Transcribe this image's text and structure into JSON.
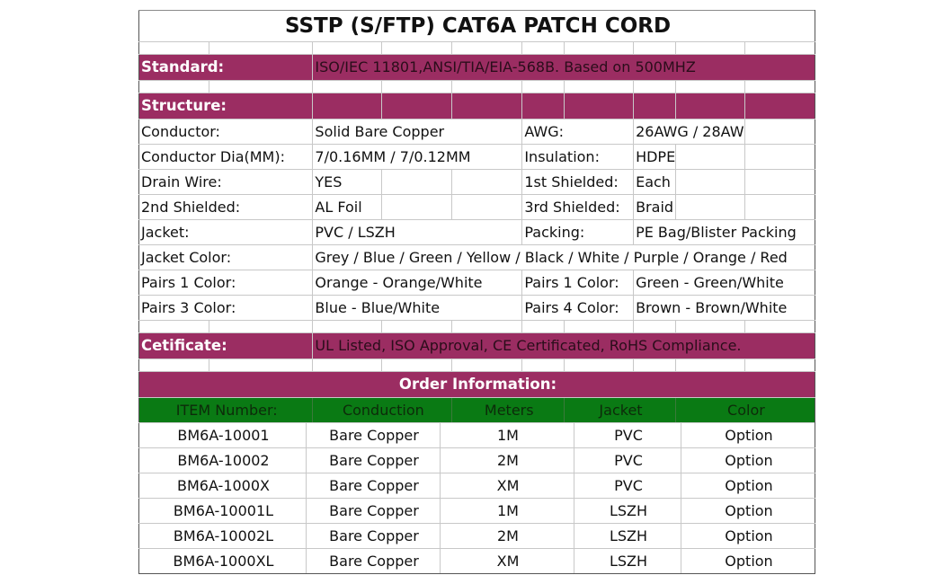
{
  "title": "SSTP (S/FTP) CAT6A PATCH CORD",
  "standard": {
    "label": "Standard:",
    "value": "ISO/IEC 11801,ANSI/TIA/EIA-568B. Based on 500MHZ"
  },
  "structure": {
    "label": "Structure:",
    "rows": [
      {
        "label": "Conductor:",
        "value": "Solid Bare Copper",
        "label2": "AWG:",
        "value2": "26AWG / 28AWG"
      },
      {
        "label": "Conductor Dia(MM):",
        "value": "7/0.16MM / 7/0.12MM",
        "label2": "Insulation:",
        "value2": "HDPE"
      },
      {
        "label": "Drain Wire:",
        "value": "YES",
        "label2": "1st Shielded:",
        "value2": "Each Pair"
      },
      {
        "label": "2nd Shielded:",
        "value": "AL Foil",
        "label2": "3rd Shielded:",
        "value2": "Braid"
      },
      {
        "label": "Jacket:",
        "value": "PVC / LSZH",
        "label2": "Packing:",
        "value2": "PE Bag/Blister Packing"
      }
    ],
    "jacket_color": {
      "label": "Jacket Color:",
      "value": "Grey / Blue / Green / Yellow / Black / White / Purple / Orange / Red"
    },
    "pairs_rows": [
      {
        "label": "Pairs 1 Color:",
        "value": "Orange - Orange/White",
        "label2": "Pairs 1 Color:",
        "value2": "Green - Green/White"
      },
      {
        "label": "Pairs 3 Color:",
        "value": "Blue - Blue/White",
        "label2": "Pairs 4 Color:",
        "value2": "Brown - Brown/White"
      }
    ]
  },
  "certificate": {
    "label": "Cetificate:",
    "value": "UL Listed, ISO Approval, CE Certificated, RoHS Compliance."
  },
  "order": {
    "title": "Order Information:",
    "headers": [
      "ITEM Number:",
      "Conduction",
      "Meters",
      "Jacket",
      "Color"
    ],
    "items": [
      [
        "BM6A-10001",
        "Bare Copper",
        "1M",
        "PVC",
        "Option"
      ],
      [
        "BM6A-10002",
        "Bare Copper",
        "2M",
        "PVC",
        "Option"
      ],
      [
        "BM6A-1000X",
        "Bare Copper",
        "XM",
        "PVC",
        "Option"
      ],
      [
        "BM6A-10001L",
        "Bare Copper",
        "1M",
        "LSZH",
        "Option"
      ],
      [
        "BM6A-10002L",
        "Bare Copper",
        "2M",
        "LSZH",
        "Option"
      ],
      [
        "BM6A-1000XL",
        "Bare Copper",
        "XM",
        "LSZH",
        "Option"
      ]
    ]
  },
  "colors": {
    "band": "#9b2d62",
    "header_green": "#0a7a14"
  }
}
